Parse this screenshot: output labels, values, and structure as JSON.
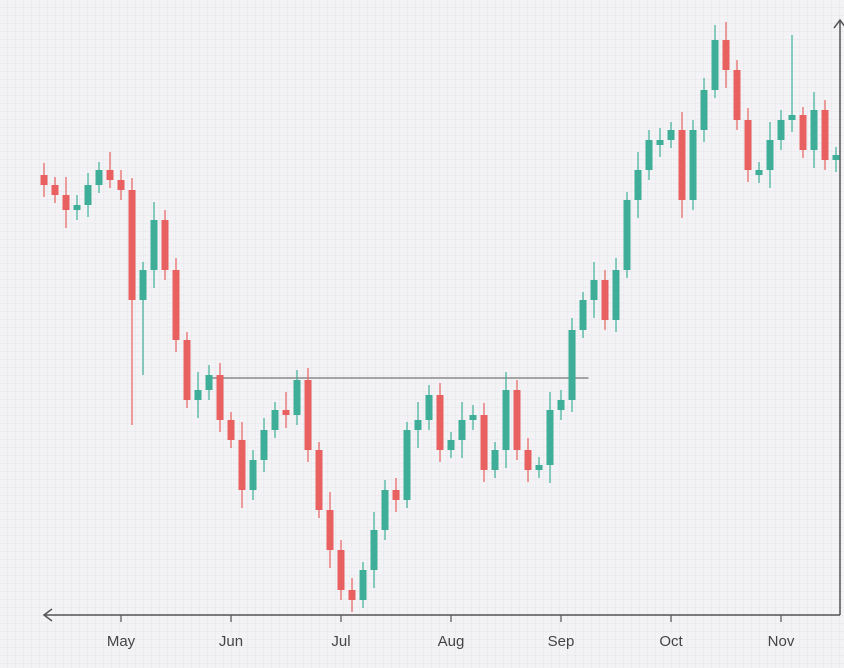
{
  "chart_data": {
    "type": "candlestick",
    "categories": [
      null,
      null,
      null,
      null,
      null,
      null,
      null,
      "May",
      null,
      null,
      null,
      null,
      null,
      null,
      null,
      null,
      null,
      "Jun",
      null,
      null,
      null,
      null,
      null,
      null,
      null,
      null,
      null,
      "Jul",
      null,
      null,
      null,
      null,
      null,
      null,
      null,
      null,
      null,
      "Aug",
      null,
      null,
      null,
      null,
      null,
      null,
      null,
      null,
      null,
      "Sep",
      null,
      null,
      null,
      null,
      null,
      null,
      null,
      null,
      null,
      "Oct",
      null,
      null,
      null,
      null,
      null,
      null,
      null,
      null,
      null,
      "Nov",
      null,
      null,
      null,
      null,
      null
    ],
    "open": [
      440,
      430,
      420,
      405,
      410,
      430,
      445,
      435,
      425,
      315,
      345,
      395,
      345,
      275,
      215,
      225,
      240,
      195,
      175,
      125,
      155,
      185,
      205,
      200,
      235,
      165,
      105,
      65,
      25,
      15,
      45,
      85,
      125,
      115,
      185,
      195,
      220,
      165,
      175,
      195,
      200,
      145,
      165,
      225,
      165,
      145,
      150,
      205,
      215,
      285,
      315,
      335,
      295,
      345,
      415,
      445,
      470,
      475,
      485,
      415,
      485,
      525,
      575,
      545,
      495,
      440,
      445,
      475,
      495,
      500,
      465,
      505,
      455
    ],
    "high": [
      452,
      438,
      438,
      420,
      442,
      453,
      463,
      445,
      437,
      353,
      413,
      405,
      357,
      283,
      243,
      250,
      252,
      203,
      193,
      165,
      197,
      213,
      223,
      245,
      247,
      173,
      123,
      75,
      37,
      53,
      103,
      135,
      137,
      193,
      213,
      230,
      232,
      183,
      213,
      210,
      212,
      173,
      243,
      235,
      177,
      158,
      223,
      225,
      297,
      323,
      353,
      345,
      357,
      423,
      463,
      485,
      487,
      493,
      503,
      495,
      537,
      590,
      593,
      555,
      507,
      453,
      493,
      505,
      580,
      508,
      523,
      515,
      468
    ],
    "low": [
      418,
      412,
      387,
      395,
      398,
      422,
      427,
      415,
      190,
      240,
      327,
      335,
      263,
      207,
      197,
      215,
      183,
      167,
      107,
      115,
      143,
      177,
      187,
      190,
      153,
      97,
      47,
      15,
      3,
      7,
      27,
      75,
      103,
      107,
      167,
      185,
      153,
      157,
      157,
      185,
      133,
      137,
      147,
      155,
      133,
      137,
      132,
      195,
      203,
      277,
      297,
      285,
      283,
      337,
      397,
      435,
      458,
      467,
      397,
      405,
      473,
      517,
      527,
      485,
      433,
      432,
      427,
      465,
      483,
      457,
      447,
      445,
      443
    ],
    "close": [
      430,
      420,
      405,
      410,
      430,
      445,
      435,
      425,
      315,
      345,
      395,
      345,
      275,
      215,
      225,
      240,
      195,
      175,
      125,
      155,
      185,
      205,
      200,
      235,
      165,
      105,
      65,
      25,
      15,
      45,
      85,
      125,
      115,
      185,
      195,
      220,
      165,
      175,
      195,
      200,
      145,
      165,
      225,
      165,
      145,
      150,
      205,
      215,
      285,
      315,
      335,
      295,
      345,
      415,
      445,
      475,
      475,
      485,
      415,
      485,
      525,
      575,
      545,
      495,
      445,
      445,
      475,
      495,
      500,
      465,
      505,
      455,
      460
    ],
    "up_color": "#3fae98",
    "down_color": "#e8605f",
    "hline": 237,
    "ylim": [
      0,
      600
    ],
    "grid": true
  }
}
